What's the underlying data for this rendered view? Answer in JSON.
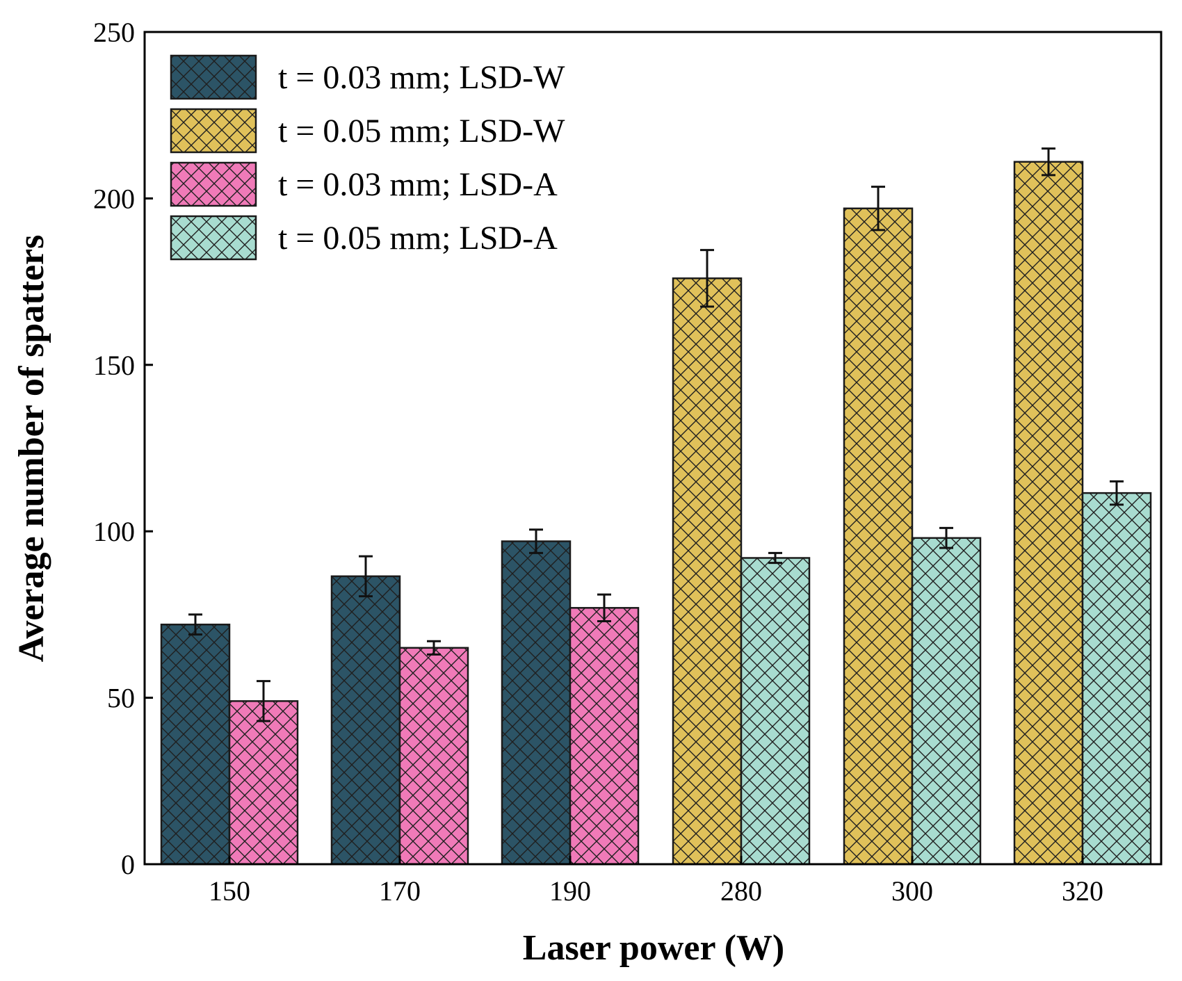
{
  "chart_data": {
    "type": "bar",
    "title": "",
    "xlabel": "Laser power (W)",
    "ylabel": "Average number of spatters",
    "ylim": [
      0,
      250
    ],
    "yticks": [
      0,
      50,
      100,
      150,
      200,
      250
    ],
    "categories": [
      "150",
      "170",
      "190",
      "280",
      "300",
      "320"
    ],
    "legend_position": "top-left",
    "pattern": "crosshatch",
    "series": [
      {
        "name": "t = 0.03 mm; LSD-W",
        "color": "#2c5466",
        "values": [
          72,
          86.5,
          97,
          null,
          null,
          null
        ],
        "errors": [
          3,
          6,
          3.5,
          null,
          null,
          null
        ]
      },
      {
        "name": "t = 0.05 mm; LSD-W",
        "color": "#e0c15a",
        "values": [
          null,
          null,
          null,
          176,
          197,
          211
        ],
        "errors": [
          null,
          null,
          null,
          8.5,
          6.5,
          4
        ]
      },
      {
        "name": "t = 0.03 mm; LSD-A",
        "color": "#f07ab8",
        "values": [
          49,
          65,
          77,
          null,
          null,
          null
        ],
        "errors": [
          6,
          2,
          4,
          null,
          null,
          null
        ]
      },
      {
        "name": "t = 0.05 mm; LSD-A",
        "color": "#a8dcd0",
        "values": [
          null,
          null,
          null,
          92,
          98,
          111.5
        ],
        "errors": [
          null,
          null,
          null,
          1.5,
          3,
          3.5
        ]
      }
    ]
  }
}
